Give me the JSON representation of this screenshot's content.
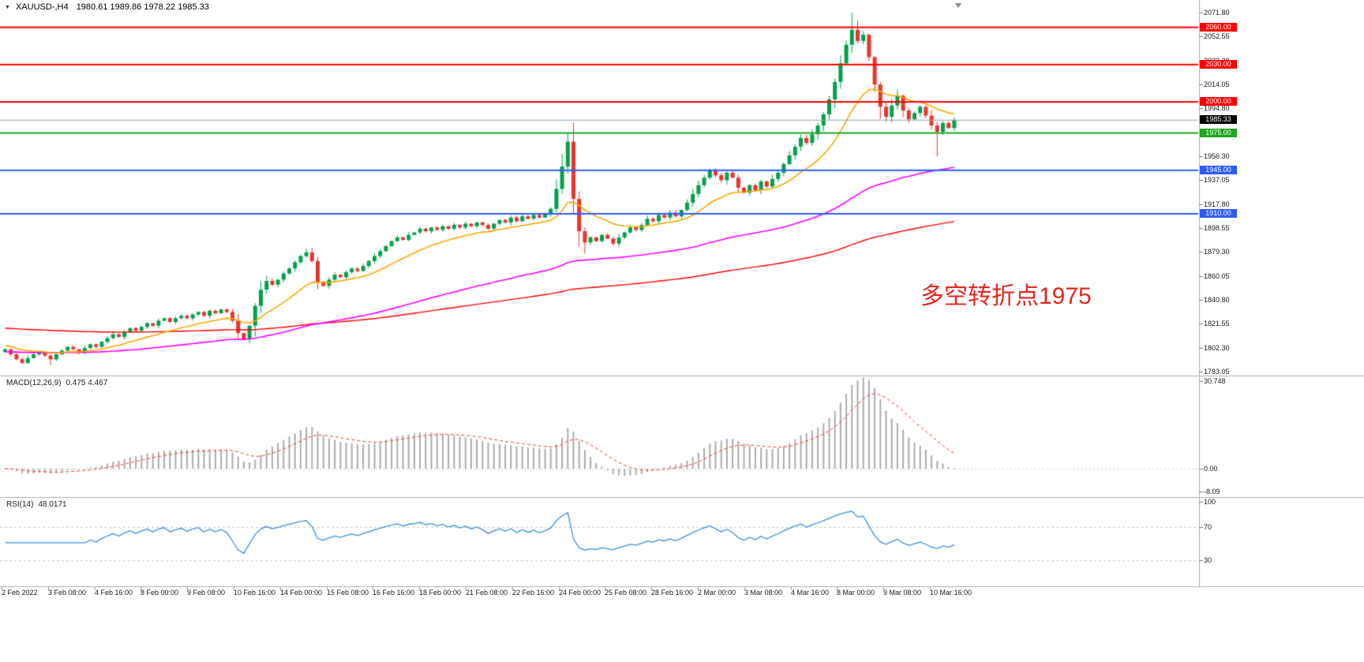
{
  "header": {
    "symbol_period": "XAUUSD-,H4",
    "ohlc": "1980.61 1989.86 1978.22 1985.33"
  },
  "icons": {
    "symbol_dropdown": "▼",
    "chart_shift": "chart-shift-triangle"
  },
  "annotation": {
    "text": "多空转折点1975",
    "color": "#E8251F"
  },
  "levels": [
    {
      "price": 2060.0,
      "label": "2060.00",
      "line_color": "#FF0000",
      "badge_color": "#FF0000",
      "width": 2,
      "role": "resistance"
    },
    {
      "price": 2030.0,
      "label": "2030.00",
      "line_color": "#FF0000",
      "badge_color": "#FF0000",
      "width": 2,
      "role": "resistance"
    },
    {
      "price": 2000.0,
      "label": "2000.00",
      "line_color": "#FF0000",
      "badge_color": "#FF0000",
      "width": 2,
      "role": "resistance"
    },
    {
      "price": 1985.33,
      "label": "1985.33",
      "line_color": "#93A1B5",
      "badge_color": "#000000",
      "width": 1,
      "role": "bid"
    },
    {
      "price": 1975.0,
      "label": "1975.00",
      "line_color": "#1FA51F",
      "badge_color": "#1FA51F",
      "width": 2,
      "role": "pivot"
    },
    {
      "price": 1945.0,
      "label": "1945.00",
      "line_color": "#2E5BFF",
      "badge_color": "#2E5BFF",
      "width": 2,
      "role": "support"
    },
    {
      "price": 1910.0,
      "label": "1910.00",
      "line_color": "#2E5BFF",
      "badge_color": "#2E5BFF",
      "width": 2,
      "role": "support"
    }
  ],
  "price_axis": {
    "labels": [
      "2071.80",
      "2052.55",
      "2033.30",
      "2014.05",
      "1994.80",
      "1975.55",
      "1956.30",
      "1937.05",
      "1917.80",
      "1898.55",
      "1879.30",
      "1860.05",
      "1840.80",
      "1821.55",
      "1802.30",
      "1783.05"
    ],
    "min": 1783.05,
    "max": 2071.8
  },
  "macd": {
    "label": "MACD(12,26,9)",
    "values": "0.475 4.467",
    "axis_labels": [
      "30.748",
      "0.00",
      "-8.09"
    ],
    "axis_values": [
      30.748,
      0,
      -8.09
    ]
  },
  "rsi": {
    "label": "RSI(14)",
    "value": "48.0171",
    "axis_labels": [
      "100",
      "70",
      "30"
    ],
    "axis_values": [
      100,
      70,
      30
    ],
    "levels": [
      70,
      30
    ]
  },
  "time_axis": {
    "labels": [
      "2 Feb 2022",
      "3 Feb 08:00",
      "4 Feb 16:00",
      "8 Feb 00:00",
      "9 Feb 08:00",
      "10 Feb 16:00",
      "14 Feb 00:00",
      "15 Feb 08:00",
      "16 Feb 16:00",
      "18 Feb 00:00",
      "21 Feb 08:00",
      "22 Feb 16:00",
      "24 Feb 00:00",
      "25 Feb 08:00",
      "28 Feb 16:00",
      "2 Mar 00:00",
      "3 Mar 08:00",
      "4 Mar 16:00",
      "8 Mar 00:00",
      "9 Mar 08:00",
      "10 Mar 16:00"
    ]
  },
  "colors": {
    "bull": "#00A14B",
    "bear": "#E8352E",
    "macd_hist": "#ABABAB",
    "macd_signal": "#FF3B30",
    "rsi": "#3E8EDE"
  },
  "chart_data": {
    "type": "candlestick",
    "symbol": "XAUUSD",
    "timeframe": "H4",
    "title": "XAUUSD-,H4 1980.61 1989.86 1978.22 1985.33",
    "ylim": [
      1783.05,
      2071.8
    ],
    "first_open": 1799,
    "closes": [
      1801,
      1797,
      1793,
      1790,
      1794,
      1797,
      1799,
      1796,
      1793,
      1797,
      1800,
      1803,
      1801,
      1798,
      1802,
      1805,
      1803,
      1807,
      1810,
      1813,
      1811,
      1815,
      1818,
      1816,
      1819,
      1822,
      1820,
      1824,
      1826,
      1823,
      1826,
      1828,
      1826,
      1829,
      1831,
      1828,
      1832,
      1830,
      1833,
      1831,
      1824,
      1814,
      1809,
      1820,
      1836,
      1849,
      1856,
      1853,
      1857,
      1862,
      1866,
      1871,
      1876,
      1879,
      1872,
      1855,
      1852,
      1857,
      1861,
      1859,
      1863,
      1866,
      1864,
      1868,
      1872,
      1876,
      1880,
      1884,
      1888,
      1891,
      1889,
      1893,
      1895,
      1898,
      1896,
      1899,
      1897,
      1900,
      1898,
      1901,
      1899,
      1902,
      1900,
      1903,
      1901,
      1898,
      1902,
      1905,
      1903,
      1907,
      1904,
      1908,
      1906,
      1909,
      1907,
      1910,
      1914,
      1930,
      1948,
      1968,
      1922,
      1896,
      1887,
      1891,
      1888,
      1893,
      1890,
      1886,
      1891,
      1895,
      1899,
      1897,
      1901,
      1906,
      1904,
      1909,
      1907,
      1911,
      1908,
      1913,
      1919,
      1926,
      1933,
      1939,
      1945,
      1941,
      1937,
      1943,
      1939,
      1931,
      1927,
      1933,
      1929,
      1936,
      1932,
      1938,
      1943,
      1950,
      1957,
      1964,
      1971,
      1967,
      1974,
      1981,
      1990,
      2002,
      2016,
      2031,
      2046,
      2058,
      2049,
      2054,
      2036,
      2014,
      1996,
      1988,
      1997,
      2005,
      1993,
      1986,
      1991,
      1996,
      1989,
      1981,
      1976,
      1983,
      1979,
      1985.33
    ],
    "wick_overrides": {
      "8": {
        "low": 1788
      },
      "53": {
        "high": 1882
      },
      "99": {
        "high": 1974.5
      },
      "102": {
        "low": 1878
      },
      "149": {
        "high": 2071.8
      },
      "150": {
        "high": 2065
      },
      "164": {
        "low": 1956
      }
    },
    "ma": {
      "fast": {
        "period": 16,
        "color": "#FFA500",
        "seed": 1804
      },
      "mid": {
        "period": 90,
        "color": "#FF00FF",
        "seed": 1799
      },
      "slow": {
        "period": 200,
        "color": "#FF0000",
        "seed": 1818
      }
    },
    "macd_params": [
      12,
      26,
      9
    ],
    "rsi_period": 14
  }
}
